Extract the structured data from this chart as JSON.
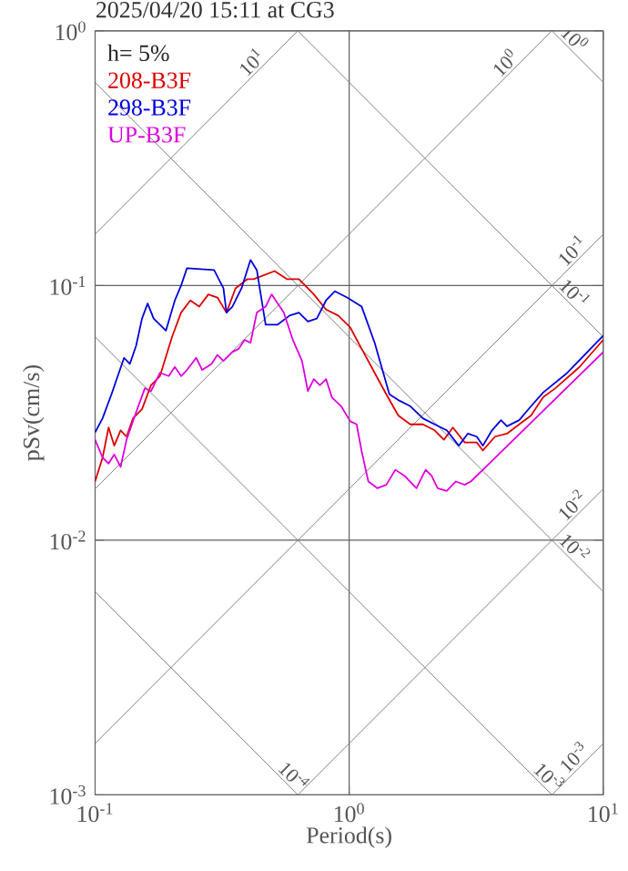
{
  "chart_data": {
    "type": "line",
    "title": "2025/04/20 15:11 at CG3",
    "xlabel": "Period(s)",
    "ylabel": "pSv(cm/s)",
    "legend_title": "h= 5%",
    "legend": "top left",
    "grid": true,
    "log": "xy",
    "xlim": [
      0.1,
      10
    ],
    "ylim": [
      0.001,
      1
    ],
    "xticks": [
      {
        "value": 0.1,
        "label": "10$^{-1}$"
      },
      {
        "value": 1,
        "label": "10$^{0}$"
      },
      {
        "value": 10,
        "label": "10$^{1}$"
      }
    ],
    "yticks": [
      {
        "value": 0.001,
        "label": "10$^{-3}$"
      },
      {
        "value": 0.01,
        "label": "10$^{-2}$"
      },
      {
        "value": 0.1,
        "label": "10$^{-1}$"
      },
      {
        "value": 1,
        "label": "10$^{0}$"
      }
    ],
    "series": [
      {
        "color": "#808080",
        "x": [
          0.1,
          0.628
        ],
        "values": [
          0.159,
          1
        ]
      },
      {
        "color": "#808080",
        "x": [
          0.1,
          6.28
        ],
        "values": [
          0.0159,
          1
        ]
      },
      {
        "color": "#808080",
        "x": [
          0.1,
          10
        ],
        "values": [
          0.00159,
          0.159
        ]
      },
      {
        "color": "#808080",
        "x": [
          0.628,
          10
        ],
        "values": [
          0.001,
          0.0159
        ]
      },
      {
        "color": "#808080",
        "x": [
          6.28,
          10
        ],
        "values": [
          0.001,
          0.00159
        ]
      },
      {
        "color": "#808080",
        "x": [
          6.28,
          10
        ],
        "values": [
          1,
          0.628
        ]
      },
      {
        "color": "#808080",
        "x": [
          0.628,
          10
        ],
        "values": [
          1,
          0.0628
        ]
      },
      {
        "color": "#808080",
        "x": [
          0.1,
          10
        ],
        "values": [
          0.628,
          0.00628
        ]
      },
      {
        "color": "#808080",
        "x": [
          0.1,
          6.28
        ],
        "values": [
          0.0628,
          0.001
        ]
      },
      {
        "color": "#808080",
        "x": [
          0.1,
          0.628
        ],
        "values": [
          0.00628,
          0.001
        ]
      },
      {
        "name": "208-B3F",
        "color": "#dd0000",
        "x": [
          0.1,
          0.107,
          0.113,
          0.119,
          0.126,
          0.133,
          0.141,
          0.153,
          0.166,
          0.18,
          0.201,
          0.218,
          0.237,
          0.257,
          0.279,
          0.303,
          0.329,
          0.357,
          0.398,
          0.421,
          0.509,
          0.568,
          0.634,
          0.688,
          0.726,
          0.811,
          0.906,
          1.01,
          1.12,
          1.26,
          1.4,
          1.56,
          1.74,
          1.95,
          2.17,
          2.36,
          2.56,
          2.85,
          3.18,
          3.36,
          3.75,
          4.18,
          4.67,
          5.2,
          5.8,
          6.48,
          8.07,
          10
        ],
        "values": [
          0.017,
          0.0211,
          0.0277,
          0.0235,
          0.027,
          0.0255,
          0.0301,
          0.0327,
          0.0406,
          0.0441,
          0.063,
          0.0783,
          0.0874,
          0.0826,
          0.0923,
          0.0897,
          0.0783,
          0.0975,
          0.106,
          0.106,
          0.114,
          0.106,
          0.106,
          0.0975,
          0.0923,
          0.0805,
          0.0762,
          0.0684,
          0.0564,
          0.0454,
          0.0374,
          0.0309,
          0.0285,
          0.0285,
          0.027,
          0.0248,
          0.0277,
          0.0242,
          0.0242,
          0.0225,
          0.0255,
          0.0262,
          0.0285,
          0.0309,
          0.0364,
          0.0395,
          0.0479,
          0.0612
        ]
      },
      {
        "name": "298-B3F",
        "color": "#0000dd",
        "x": [
          0.1,
          0.107,
          0.116,
          0.13,
          0.137,
          0.145,
          0.153,
          0.161,
          0.17,
          0.19,
          0.206,
          0.218,
          0.23,
          0.294,
          0.32,
          0.329,
          0.347,
          0.377,
          0.409,
          0.433,
          0.469,
          0.523,
          0.583,
          0.634,
          0.688,
          0.746,
          0.811,
          0.879,
          0.981,
          1.12,
          1.26,
          1.44,
          1.56,
          1.74,
          1.95,
          2.17,
          2.42,
          2.7,
          2.93,
          3.18,
          3.36,
          3.65,
          3.96,
          4.18,
          4.67,
          5.2,
          5.8,
          7.22,
          10
        ],
        "values": [
          0.0265,
          0.0301,
          0.0374,
          0.052,
          0.0492,
          0.058,
          0.0742,
          0.085,
          0.0742,
          0.0665,
          0.0874,
          0.1,
          0.117,
          0.115,
          0.0975,
          0.0783,
          0.0826,
          0.0975,
          0.126,
          0.115,
          0.0702,
          0.0702,
          0.0762,
          0.0783,
          0.0722,
          0.0742,
          0.0874,
          0.0949,
          0.0897,
          0.0826,
          0.0596,
          0.0374,
          0.0355,
          0.0336,
          0.0301,
          0.0285,
          0.027,
          0.0235,
          0.0262,
          0.0255,
          0.0235,
          0.027,
          0.0296,
          0.028,
          0.0296,
          0.0336,
          0.038,
          0.0454,
          0.0636
        ]
      },
      {
        "name": "UP-B3F",
        "color": "#dd00dd",
        "x": [
          0.1,
          0.107,
          0.113,
          0.119,
          0.126,
          0.133,
          0.145,
          0.157,
          0.166,
          0.18,
          0.195,
          0.206,
          0.218,
          0.23,
          0.25,
          0.264,
          0.287,
          0.303,
          0.32,
          0.347,
          0.367,
          0.388,
          0.409,
          0.433,
          0.469,
          0.495,
          0.523,
          0.553,
          0.6,
          0.652,
          0.688,
          0.726,
          0.767,
          0.811,
          0.855,
          0.929,
          1.01,
          1.07,
          1.12,
          1.19,
          1.29,
          1.4,
          1.52,
          1.65,
          1.84,
          2.0,
          2.11,
          2.23,
          2.42,
          2.63,
          2.85,
          3.01,
          3.36,
          10
        ],
        "values": [
          0.0248,
          0.0211,
          0.02,
          0.0217,
          0.0194,
          0.0248,
          0.0318,
          0.0395,
          0.0385,
          0.0454,
          0.0441,
          0.0479,
          0.0441,
          0.0466,
          0.052,
          0.0466,
          0.0492,
          0.0534,
          0.0506,
          0.0548,
          0.0564,
          0.0612,
          0.0596,
          0.0783,
          0.0826,
          0.0923,
          0.085,
          0.0783,
          0.0612,
          0.0506,
          0.0385,
          0.0429,
          0.0406,
          0.0429,
          0.0364,
          0.0336,
          0.0293,
          0.0285,
          0.0223,
          0.017,
          0.016,
          0.0165,
          0.0189,
          0.0179,
          0.016,
          0.0189,
          0.0179,
          0.016,
          0.0156,
          0.017,
          0.0165,
          0.017,
          0.0189,
          0.0548
        ]
      }
    ],
    "annotations": [
      {
        "text": "10$^{1}$",
        "x": 0.442,
        "y": 0.703
      },
      {
        "text": "10$^{0}$",
        "x": 4.4,
        "y": 0.7
      },
      {
        "text": "10$^{0}$",
        "x": 7.2,
        "y": 0.873
      },
      {
        "text": "10$^{-1}$",
        "x": 8.07,
        "y": 0.128
      },
      {
        "text": "10$^{-1}$",
        "x": 7.2,
        "y": 0.0873
      },
      {
        "text": "10$^{-2}$",
        "x": 8.07,
        "y": 0.0128
      },
      {
        "text": "10$^{-2}$",
        "x": 7.2,
        "y": 0.00873
      },
      {
        "text": "10$^{-3}$",
        "x": 8.2,
        "y": 0.00131
      },
      {
        "text": "10$^{-4}$",
        "x": 0.565,
        "y": 0.00111
      },
      {
        "text": "10$^{-3}$",
        "x": 5.71,
        "y": 0.0011
      }
    ]
  }
}
